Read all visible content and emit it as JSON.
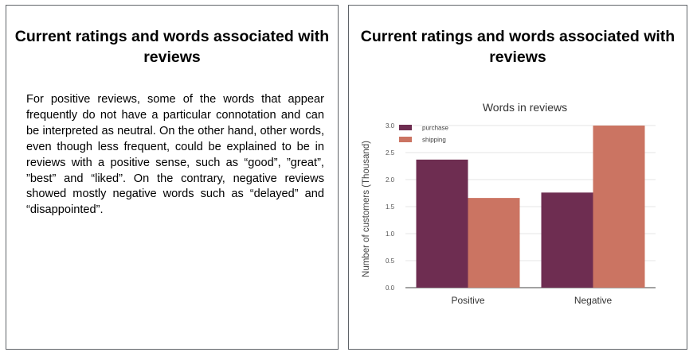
{
  "left_slide": {
    "title": "Current ratings and words associated with reviews",
    "body": "For positive reviews, some of the words that appear frequently do not have a particular connotation and can be interpreted as neutral. On the other hand, other words, even though less frequent, could be explained to be in reviews with a positive sense, such as “good”, ”great”, ”best” and “liked”. On the contrary, negative reviews showed mostly negative words such as “delayed” and “disappointed”."
  },
  "right_slide": {
    "title": "Current ratings and words associated with reviews"
  },
  "chart_data": {
    "type": "bar",
    "title": "Words in reviews",
    "xlabel": "",
    "ylabel": "Number of customers (Thousand)",
    "categories": [
      "Positive",
      "Negative"
    ],
    "series": [
      {
        "name": "purchase",
        "values": [
          2.37,
          1.76
        ],
        "color": "#6e2d51"
      },
      {
        "name": "shipping",
        "values": [
          1.66,
          3.0
        ],
        "color": "#cb7462"
      }
    ],
    "ylim": [
      0,
      3.0
    ],
    "yticks": [
      "0.0",
      "0.5",
      "1.0",
      "1.5",
      "2.0",
      "2.5",
      "3.0"
    ],
    "grid": true,
    "legend_position": "top-left"
  }
}
